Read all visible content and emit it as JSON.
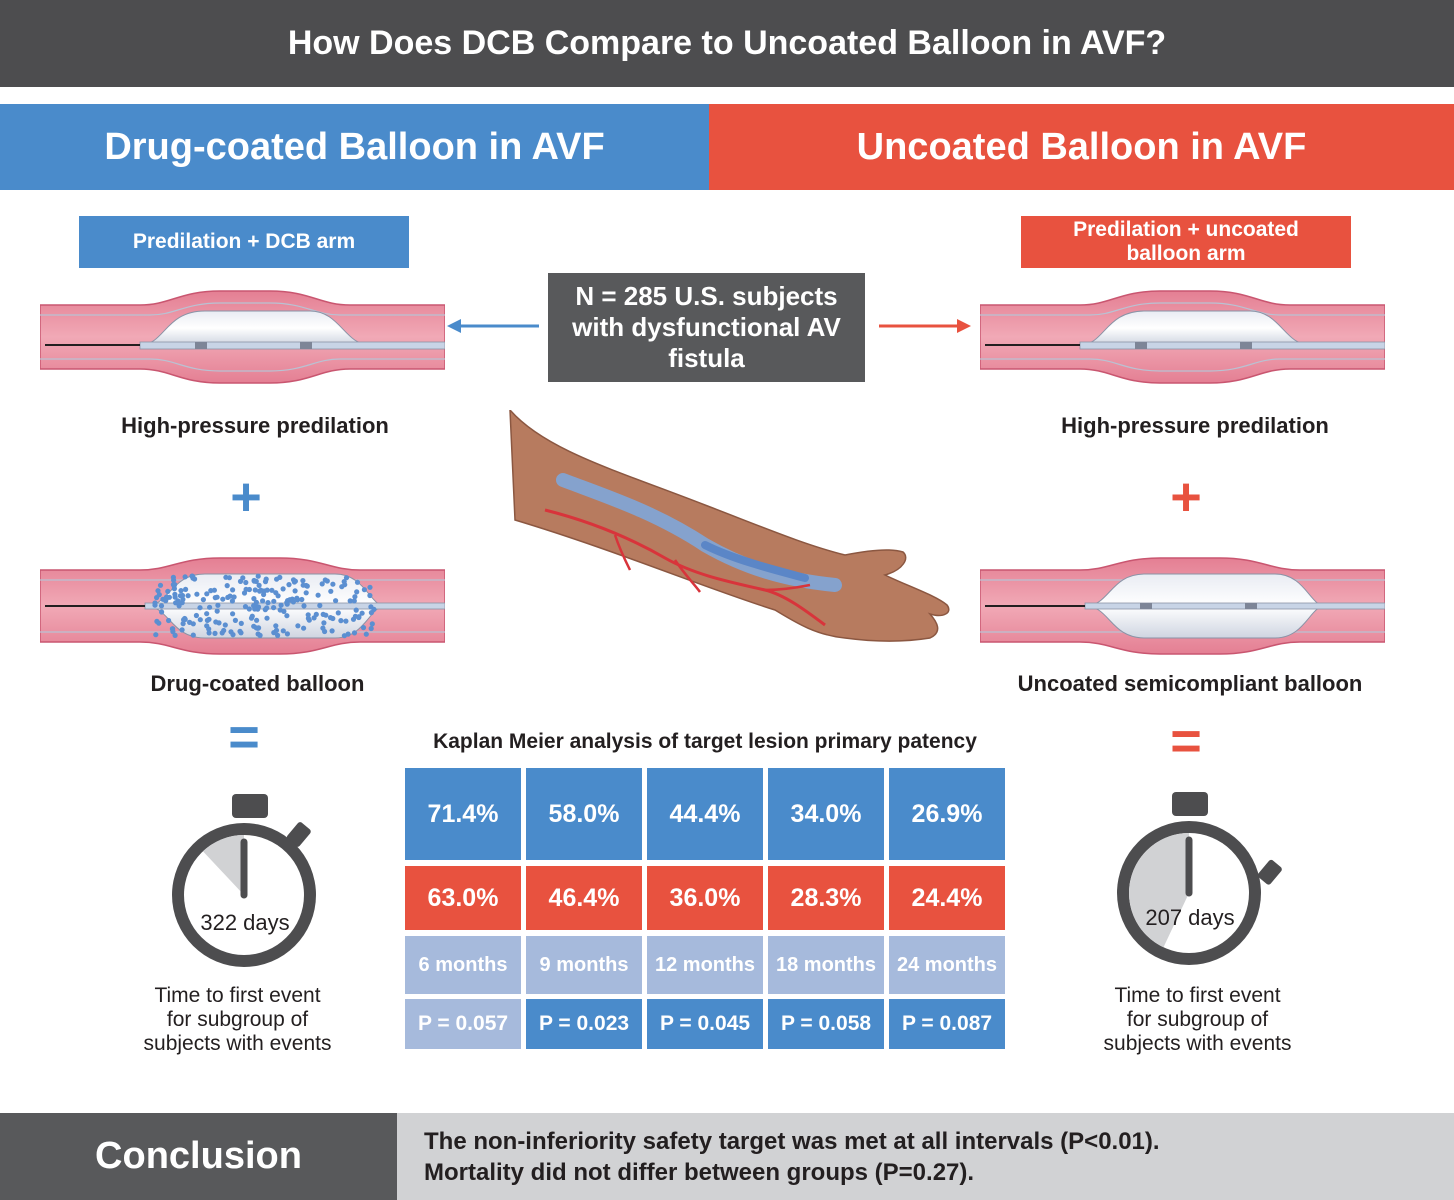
{
  "title": "How Does DCB Compare to Uncoated Balloon in AVF?",
  "left_header": "Drug-coated Balloon in AVF",
  "right_header": "Uncoated Balloon in AVF",
  "left_arm": "Predilation + DCB arm",
  "right_arm_line1": "Predilation + uncoated",
  "right_arm_line2": "balloon arm",
  "n_box_line1": "N = 285 U.S. subjects",
  "n_box_line2": "with dysfunctional AV",
  "n_box_line3": "fistula",
  "left_caption1": "High-pressure predilation",
  "left_caption2": "Drug-coated balloon",
  "right_caption1": "High-pressure predilation",
  "right_caption2": "Uncoated semicompliant balloon",
  "plus": "+",
  "equals": "=",
  "km_title": "Kaplan Meier analysis of target lesion primary patency",
  "km_table": {
    "dcb": [
      "71.4%",
      "58.0%",
      "44.4%",
      "34.0%",
      "26.9%"
    ],
    "uncoated": [
      "63.0%",
      "46.4%",
      "36.0%",
      "28.3%",
      "24.4%"
    ],
    "intervals": [
      "6 months",
      "9 months",
      "12 months",
      "18 months",
      "24 months"
    ],
    "p_values": [
      "P = 0.057",
      "P = 0.023",
      "P = 0.045",
      "P = 0.058",
      "P = 0.087"
    ]
  },
  "left_timer": {
    "days": "322 days",
    "fraction_of_year": 0.88
  },
  "right_timer": {
    "days": "207 days",
    "fraction_of_year": 0.57
  },
  "tte_line1": "Time to first event",
  "tte_line2": "for subgroup of",
  "tte_line3": "subjects with events",
  "conclusion_label": "Conclusion",
  "conclusion_line1": "The non-inferiority safety target was met at all intervals (P<0.01).",
  "conclusion_line2": "Mortality did not differ between groups (P=0.27).",
  "colors": {
    "blue": "#4a8bcb",
    "red": "#e8523f",
    "dark_gray": "#58595b",
    "light_blue": "#a6badc"
  },
  "icons": [
    "arrow-left-icon",
    "arrow-right-icon",
    "stopwatch-icon",
    "vessel-balloon-icon",
    "forearm-icon"
  ]
}
